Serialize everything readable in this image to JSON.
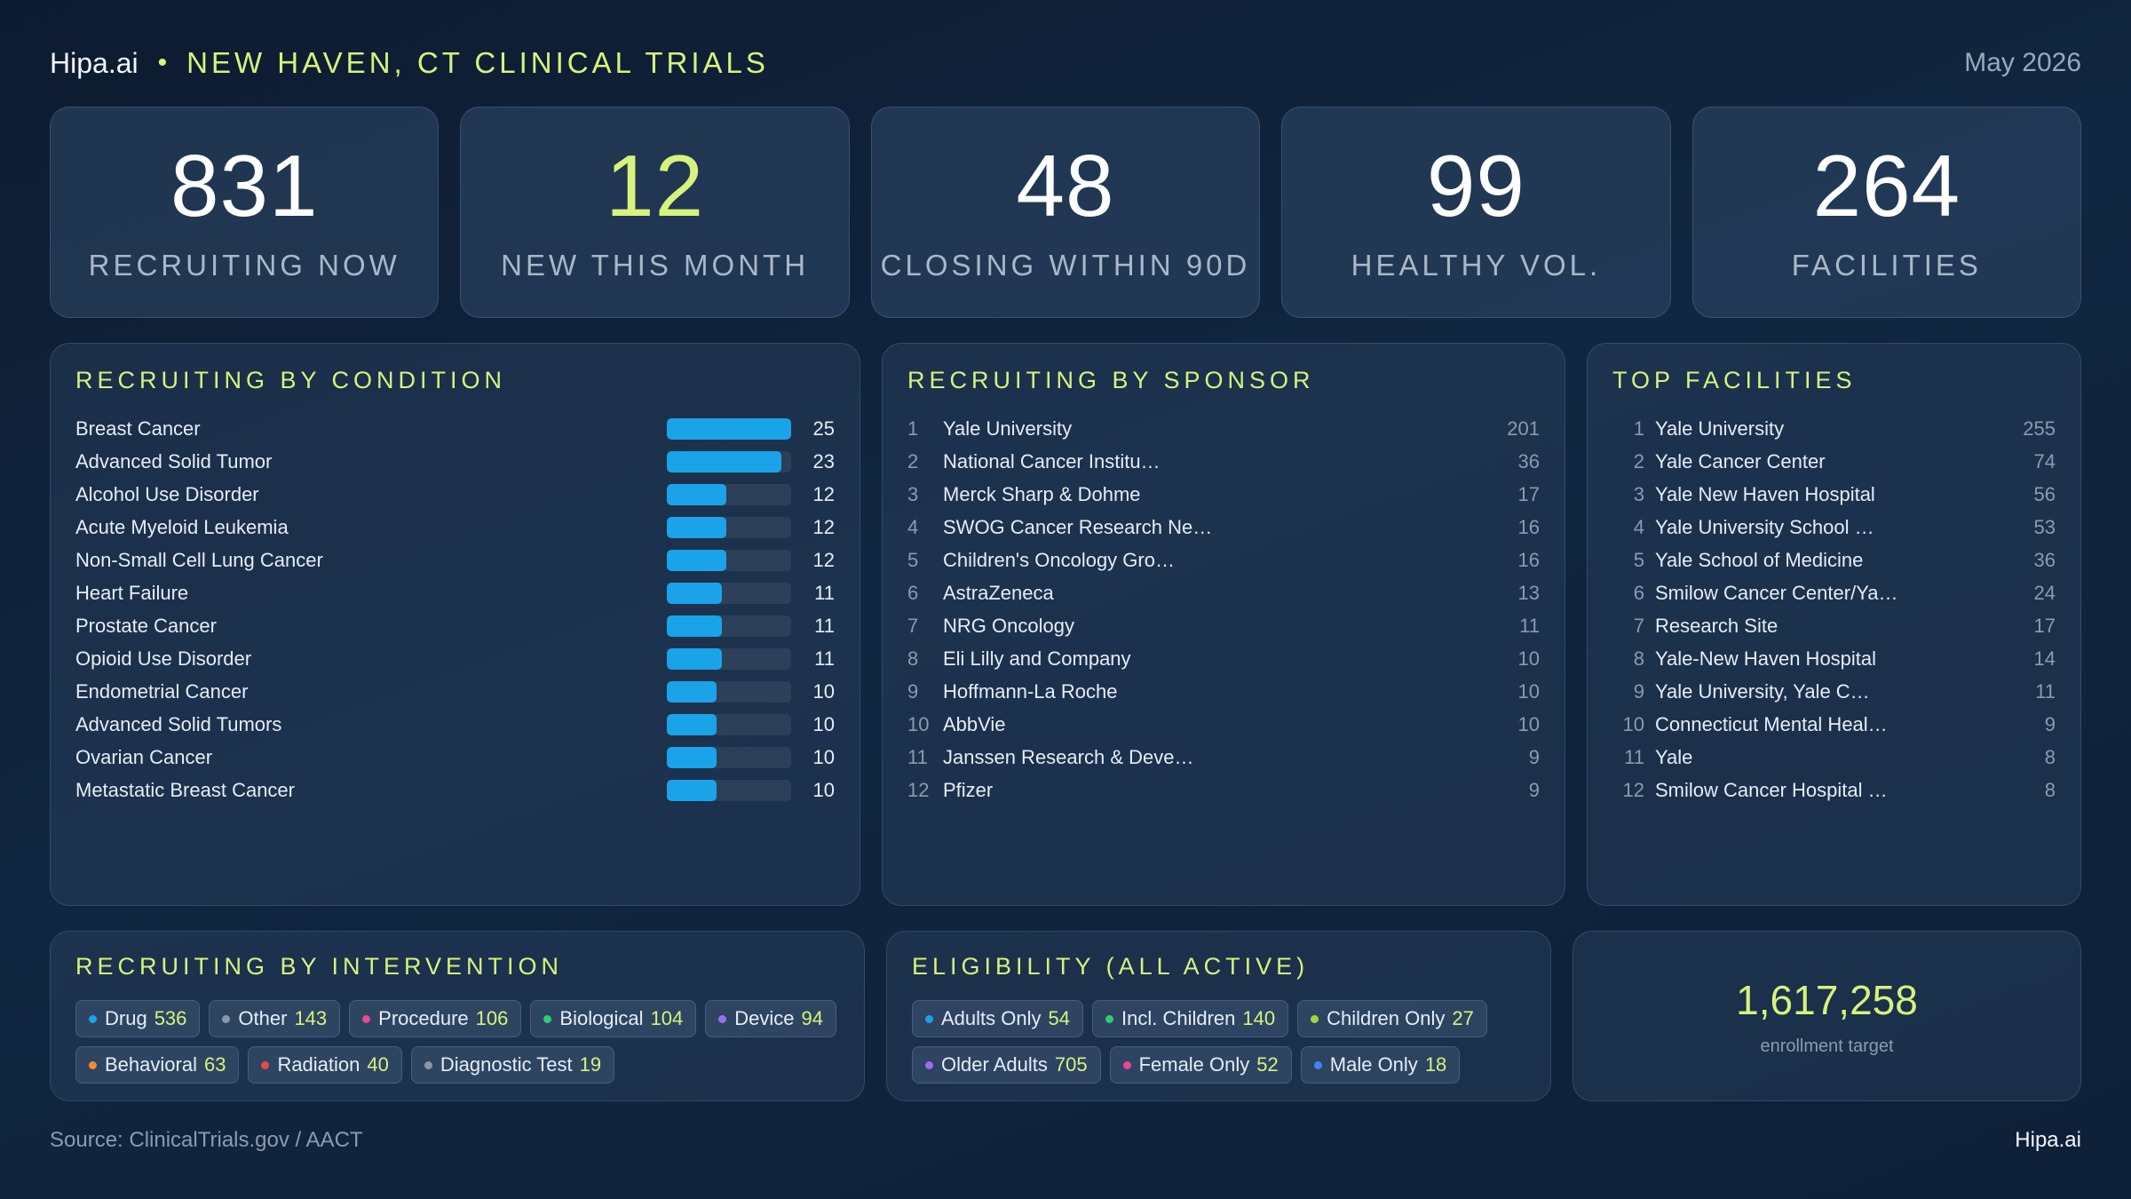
{
  "header": {
    "brand": "Hipa.ai",
    "separator": "•",
    "title": "NEW HAVEN, CT CLINICAL TRIALS",
    "date": "May 2026"
  },
  "kpis": [
    {
      "value": "831",
      "label": "RECRUITING NOW",
      "accent": false
    },
    {
      "value": "12",
      "label": "NEW THIS MONTH",
      "accent": true
    },
    {
      "value": "48",
      "label": "CLOSING WITHIN 90D",
      "accent": false
    },
    {
      "value": "99",
      "label": "HEALTHY VOL.",
      "accent": false
    },
    {
      "value": "264",
      "label": "FACILITIES",
      "accent": false
    }
  ],
  "condition": {
    "title": "RECRUITING BY CONDITION",
    "bar_max": 25,
    "bar_color": "#1aa3e8",
    "items": [
      {
        "name": "Breast Cancer",
        "count": 25
      },
      {
        "name": "Advanced Solid Tumor",
        "count": 23
      },
      {
        "name": "Alcohol Use Disorder",
        "count": 12
      },
      {
        "name": "Acute Myeloid Leukemia",
        "count": 12
      },
      {
        "name": "Non-Small Cell Lung Cancer",
        "count": 12
      },
      {
        "name": "Heart Failure",
        "count": 11
      },
      {
        "name": "Prostate Cancer",
        "count": 11
      },
      {
        "name": "Opioid Use Disorder",
        "count": 11
      },
      {
        "name": "Endometrial Cancer",
        "count": 10
      },
      {
        "name": "Advanced Solid Tumors",
        "count": 10
      },
      {
        "name": "Ovarian Cancer",
        "count": 10
      },
      {
        "name": "Metastatic Breast Cancer",
        "count": 10
      }
    ]
  },
  "sponsor": {
    "title": "RECRUITING BY SPONSOR",
    "items": [
      {
        "rank": "1",
        "name": "Yale University",
        "count": "201"
      },
      {
        "rank": "2",
        "name": "National Cancer Institu…",
        "count": "36"
      },
      {
        "rank": "3",
        "name": "Merck Sharp & Dohme",
        "count": "17"
      },
      {
        "rank": "4",
        "name": "SWOG Cancer Research Ne…",
        "count": "16"
      },
      {
        "rank": "5",
        "name": "Children's Oncology Gro…",
        "count": "16"
      },
      {
        "rank": "6",
        "name": "AstraZeneca",
        "count": "13"
      },
      {
        "rank": "7",
        "name": "NRG Oncology",
        "count": "11"
      },
      {
        "rank": "8",
        "name": "Eli Lilly and Company",
        "count": "10"
      },
      {
        "rank": "9",
        "name": "Hoffmann-La Roche",
        "count": "10"
      },
      {
        "rank": "10",
        "name": "AbbVie",
        "count": "10"
      },
      {
        "rank": "11",
        "name": "Janssen Research & Deve…",
        "count": "9"
      },
      {
        "rank": "12",
        "name": "Pfizer",
        "count": "9"
      }
    ]
  },
  "facilities": {
    "title": "TOP FACILITIES",
    "items": [
      {
        "rank": "1",
        "name": "Yale University",
        "count": "255"
      },
      {
        "rank": "2",
        "name": "Yale Cancer Center",
        "count": "74"
      },
      {
        "rank": "3",
        "name": "Yale New Haven Hospital",
        "count": "56"
      },
      {
        "rank": "4",
        "name": "Yale University School …",
        "count": "53"
      },
      {
        "rank": "5",
        "name": "Yale School of Medicine",
        "count": "36"
      },
      {
        "rank": "6",
        "name": "Smilow Cancer Center/Ya…",
        "count": "24"
      },
      {
        "rank": "7",
        "name": "Research Site",
        "count": "17"
      },
      {
        "rank": "8",
        "name": "Yale-New Haven Hospital",
        "count": "14"
      },
      {
        "rank": "9",
        "name": "Yale University, Yale C…",
        "count": "11"
      },
      {
        "rank": "10",
        "name": "Connecticut Mental Heal…",
        "count": "9"
      },
      {
        "rank": "11",
        "name": "Yale",
        "count": "8"
      },
      {
        "rank": "12",
        "name": "Smilow Cancer Hospital …",
        "count": "8"
      }
    ]
  },
  "intervention": {
    "title": "RECRUITING BY INTERVENTION",
    "chips": [
      {
        "label": "Drug",
        "count": "536",
        "color": "#1aa3e8"
      },
      {
        "label": "Other",
        "count": "143",
        "color": "#8a96a6"
      },
      {
        "label": "Procedure",
        "count": "106",
        "color": "#e8498f"
      },
      {
        "label": "Biological",
        "count": "104",
        "color": "#2ecc71"
      },
      {
        "label": "Device",
        "count": "94",
        "color": "#9b6cf2"
      },
      {
        "label": "Behavioral",
        "count": "63",
        "color": "#f28c28"
      },
      {
        "label": "Radiation",
        "count": "40",
        "color": "#e84a4a"
      },
      {
        "label": "Diagnostic Test",
        "count": "19",
        "color": "#8a96a6"
      }
    ]
  },
  "eligibility": {
    "title": "ELIGIBILITY (ALL ACTIVE)",
    "chips": [
      {
        "label": "Adults Only",
        "count": "54",
        "color": "#1aa3e8"
      },
      {
        "label": "Incl. Children",
        "count": "140",
        "color": "#2ecc71"
      },
      {
        "label": "Children Only",
        "count": "27",
        "color": "#a4d63a"
      },
      {
        "label": "Older Adults",
        "count": "705",
        "color": "#9b6cf2"
      },
      {
        "label": "Female Only",
        "count": "52",
        "color": "#e8498f"
      },
      {
        "label": "Male Only",
        "count": "18",
        "color": "#3a86f2"
      }
    ]
  },
  "enrollment": {
    "value": "1,617,258",
    "label": "enrollment target"
  },
  "footer": {
    "source": "Source: ClinicalTrials.gov / AACT",
    "brand": "Hipa.ai"
  }
}
